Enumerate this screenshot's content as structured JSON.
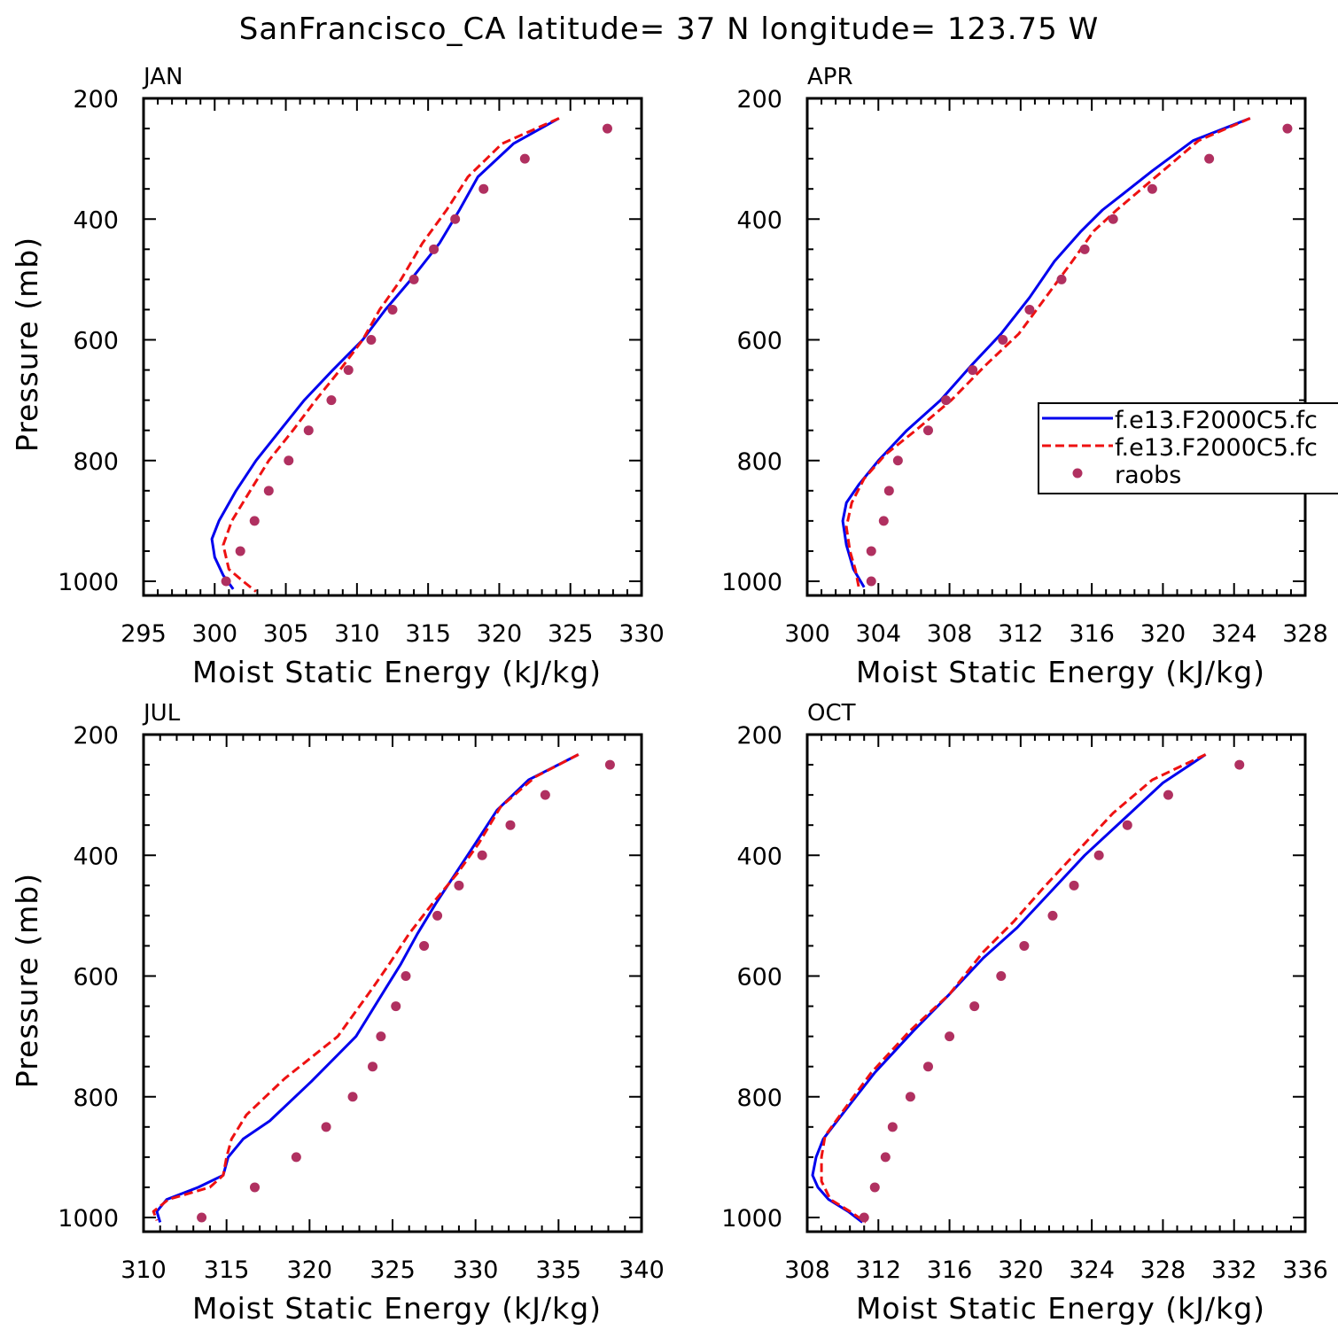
{
  "figure": {
    "title": "SanFrancisco_CA  latitude= 37 N longitude= 123.75 W"
  },
  "colors": {
    "series_solid": "#0000ee",
    "series_dashed": "#ee1111",
    "raobs": "#b03060",
    "axis": "#000000"
  },
  "legend_labels": [
    "f.e13.F2000C5.fc",
    "f.e13.F2000C5.fc",
    "raobs"
  ],
  "chart_data": [
    {
      "type": "line",
      "panel": "JAN",
      "xlabel": "Moist Static Energy (kJ/kg)",
      "ylabel": "Pressure (mb)",
      "xlim": [
        295,
        330
      ],
      "xticks": [
        295,
        300,
        305,
        310,
        315,
        320,
        325,
        330
      ],
      "ylim": [
        1025,
        200
      ],
      "yticks": [
        200,
        400,
        600,
        800,
        1000
      ],
      "series": [
        {
          "style": "solid",
          "points": [
            [
              324.2,
              233
            ],
            [
              321.0,
              275
            ],
            [
              318.5,
              330
            ],
            [
              317.2,
              385
            ],
            [
              315.8,
              440
            ],
            [
              313.8,
              500
            ],
            [
              312.0,
              550
            ],
            [
              310.4,
              600
            ],
            [
              308.3,
              650
            ],
            [
              306.3,
              700
            ],
            [
              304.6,
              750
            ],
            [
              302.9,
              800
            ],
            [
              301.5,
              850
            ],
            [
              300.3,
              900
            ],
            [
              299.8,
              930
            ],
            [
              300.0,
              960
            ],
            [
              300.6,
              990
            ],
            [
              301.3,
              1013
            ]
          ]
        },
        {
          "style": "dashed",
          "points": [
            [
              324.2,
              233
            ],
            [
              320.2,
              275
            ],
            [
              317.8,
              330
            ],
            [
              316.3,
              385
            ],
            [
              314.6,
              440
            ],
            [
              313.1,
              500
            ],
            [
              311.6,
              550
            ],
            [
              310.4,
              600
            ],
            [
              308.8,
              650
            ],
            [
              307.1,
              700
            ],
            [
              305.5,
              750
            ],
            [
              303.8,
              800
            ],
            [
              302.5,
              850
            ],
            [
              301.2,
              900
            ],
            [
              300.6,
              940
            ],
            [
              301.0,
              980
            ],
            [
              302.0,
              1000
            ],
            [
              302.9,
              1017
            ]
          ]
        },
        {
          "style": "dots",
          "points": [
            [
              327.6,
              250
            ],
            [
              321.8,
              300
            ],
            [
              318.9,
              350
            ],
            [
              316.9,
              400
            ],
            [
              315.4,
              450
            ],
            [
              314.0,
              500
            ],
            [
              312.5,
              550
            ],
            [
              311.0,
              600
            ],
            [
              309.4,
              650
            ],
            [
              308.2,
              700
            ],
            [
              306.6,
              750
            ],
            [
              305.2,
              800
            ],
            [
              303.8,
              850
            ],
            [
              302.8,
              900
            ],
            [
              301.8,
              950
            ],
            [
              300.8,
              1000
            ]
          ]
        }
      ]
    },
    {
      "type": "line",
      "panel": "APR",
      "xlabel": "Moist Static Energy (kJ/kg)",
      "ylabel": "",
      "xlim": [
        300,
        328
      ],
      "xticks": [
        300,
        304,
        308,
        312,
        316,
        320,
        324,
        328
      ],
      "ylim": [
        1025,
        200
      ],
      "yticks": [
        200,
        400,
        600,
        800,
        1000
      ],
      "series": [
        {
          "style": "solid",
          "points": [
            [
              324.9,
              233
            ],
            [
              321.7,
              270
            ],
            [
              319.4,
              320
            ],
            [
              317.9,
              355
            ],
            [
              316.6,
              385
            ],
            [
              315.4,
              420
            ],
            [
              313.9,
              470
            ],
            [
              312.5,
              530
            ],
            [
              310.9,
              590
            ],
            [
              309.3,
              640
            ],
            [
              307.5,
              700
            ],
            [
              305.6,
              750
            ],
            [
              304.0,
              800
            ],
            [
              302.9,
              840
            ],
            [
              302.2,
              870
            ],
            [
              302.0,
              900
            ],
            [
              302.2,
              940
            ],
            [
              302.6,
              980
            ],
            [
              303.2,
              1010
            ]
          ]
        },
        {
          "style": "dashed",
          "points": [
            [
              324.9,
              233
            ],
            [
              322.0,
              270
            ],
            [
              320.0,
              320
            ],
            [
              318.6,
              355
            ],
            [
              317.4,
              385
            ],
            [
              316.1,
              420
            ],
            [
              314.9,
              470
            ],
            [
              313.4,
              530
            ],
            [
              311.9,
              590
            ],
            [
              310.1,
              640
            ],
            [
              308.1,
              700
            ],
            [
              306.1,
              750
            ],
            [
              304.4,
              790
            ],
            [
              303.2,
              830
            ],
            [
              302.5,
              870
            ],
            [
              302.2,
              910
            ],
            [
              302.4,
              950
            ],
            [
              302.7,
              980
            ],
            [
              302.9,
              1010
            ]
          ]
        },
        {
          "style": "dots",
          "points": [
            [
              327.0,
              250
            ],
            [
              322.6,
              300
            ],
            [
              319.4,
              350
            ],
            [
              317.2,
              400
            ],
            [
              315.6,
              450
            ],
            [
              314.3,
              500
            ],
            [
              312.5,
              550
            ],
            [
              311.0,
              600
            ],
            [
              309.3,
              650
            ],
            [
              307.8,
              700
            ],
            [
              306.8,
              750
            ],
            [
              305.1,
              800
            ],
            [
              304.6,
              850
            ],
            [
              304.3,
              900
            ],
            [
              303.6,
              950
            ],
            [
              303.6,
              1000
            ]
          ]
        }
      ]
    },
    {
      "type": "line",
      "panel": "JUL",
      "xlabel": "Moist Static Energy (kJ/kg)",
      "ylabel": "Pressure (mb)",
      "xlim": [
        310,
        340
      ],
      "xticks": [
        310,
        315,
        320,
        325,
        330,
        335,
        340
      ],
      "ylim": [
        1025,
        200
      ],
      "yticks": [
        200,
        400,
        600,
        800,
        1000
      ],
      "series": [
        {
          "style": "solid",
          "points": [
            [
              336.2,
              233
            ],
            [
              333.2,
              275
            ],
            [
              331.3,
              325
            ],
            [
              330.0,
              380
            ],
            [
              328.8,
              430
            ],
            [
              327.6,
              480
            ],
            [
              326.5,
              530
            ],
            [
              325.5,
              580
            ],
            [
              324.6,
              620
            ],
            [
              322.8,
              700
            ],
            [
              320.1,
              775
            ],
            [
              317.6,
              840
            ],
            [
              316.0,
              870
            ],
            [
              315.1,
              900
            ],
            [
              314.8,
              930
            ],
            [
              313.3,
              950
            ],
            [
              311.4,
              970
            ],
            [
              310.8,
              990
            ],
            [
              311.0,
              1008
            ]
          ]
        },
        {
          "style": "dashed",
          "points": [
            [
              336.2,
              233
            ],
            [
              333.6,
              270
            ],
            [
              331.5,
              320
            ],
            [
              330.2,
              380
            ],
            [
              328.9,
              430
            ],
            [
              327.4,
              480
            ],
            [
              326.0,
              530
            ],
            [
              324.8,
              580
            ],
            [
              323.8,
              620
            ],
            [
              321.7,
              700
            ],
            [
              318.5,
              770
            ],
            [
              316.2,
              830
            ],
            [
              315.3,
              870
            ],
            [
              315.0,
              900
            ],
            [
              314.8,
              930
            ],
            [
              314.0,
              950
            ],
            [
              311.5,
              970
            ],
            [
              310.6,
              990
            ],
            [
              310.8,
              1005
            ]
          ]
        },
        {
          "style": "dots",
          "points": [
            [
              338.1,
              250
            ],
            [
              334.2,
              300
            ],
            [
              332.1,
              350
            ],
            [
              330.4,
              400
            ],
            [
              329.0,
              450
            ],
            [
              327.7,
              500
            ],
            [
              326.9,
              550
            ],
            [
              325.8,
              600
            ],
            [
              325.2,
              650
            ],
            [
              324.3,
              700
            ],
            [
              323.8,
              750
            ],
            [
              322.6,
              800
            ],
            [
              321.0,
              850
            ],
            [
              319.2,
              900
            ],
            [
              316.7,
              950
            ],
            [
              313.5,
              1000
            ]
          ]
        }
      ]
    },
    {
      "type": "line",
      "panel": "OCT",
      "xlabel": "Moist Static Energy (kJ/kg)",
      "ylabel": "",
      "xlim": [
        308,
        336
      ],
      "xticks": [
        308,
        312,
        316,
        320,
        324,
        328,
        332,
        336
      ],
      "ylim": [
        1025,
        200
      ],
      "yticks": [
        200,
        400,
        600,
        800,
        1000
      ],
      "series": [
        {
          "style": "solid",
          "points": [
            [
              330.4,
              233
            ],
            [
              328.0,
              280
            ],
            [
              325.8,
              340
            ],
            [
              323.6,
              400
            ],
            [
              321.7,
              460
            ],
            [
              319.8,
              520
            ],
            [
              317.9,
              570
            ],
            [
              316.0,
              630
            ],
            [
              314.0,
              690
            ],
            [
              311.8,
              760
            ],
            [
              310.2,
              820
            ],
            [
              308.9,
              870
            ],
            [
              308.5,
              900
            ],
            [
              308.3,
              930
            ],
            [
              308.6,
              950
            ],
            [
              309.2,
              970
            ],
            [
              310.3,
              990
            ],
            [
              311.1,
              1008
            ]
          ]
        },
        {
          "style": "dashed",
          "points": [
            [
              330.4,
              233
            ],
            [
              327.4,
              275
            ],
            [
              325.2,
              330
            ],
            [
              323.3,
              390
            ],
            [
              321.4,
              450
            ],
            [
              319.6,
              510
            ],
            [
              317.9,
              560
            ],
            [
              316.0,
              630
            ],
            [
              313.8,
              690
            ],
            [
              311.6,
              760
            ],
            [
              310.1,
              820
            ],
            [
              309.0,
              865
            ],
            [
              308.8,
              900
            ],
            [
              308.8,
              940
            ],
            [
              309.3,
              970
            ],
            [
              310.4,
              990
            ],
            [
              311.3,
              1008
            ]
          ]
        },
        {
          "style": "dots",
          "points": [
            [
              332.3,
              250
            ],
            [
              328.3,
              300
            ],
            [
              326.0,
              350
            ],
            [
              324.4,
              400
            ],
            [
              323.0,
              450
            ],
            [
              321.8,
              500
            ],
            [
              320.2,
              550
            ],
            [
              318.9,
              600
            ],
            [
              317.4,
              650
            ],
            [
              316.0,
              700
            ],
            [
              314.8,
              750
            ],
            [
              313.8,
              800
            ],
            [
              312.8,
              850
            ],
            [
              312.4,
              900
            ],
            [
              311.8,
              950
            ],
            [
              311.2,
              1000
            ]
          ]
        }
      ]
    }
  ]
}
